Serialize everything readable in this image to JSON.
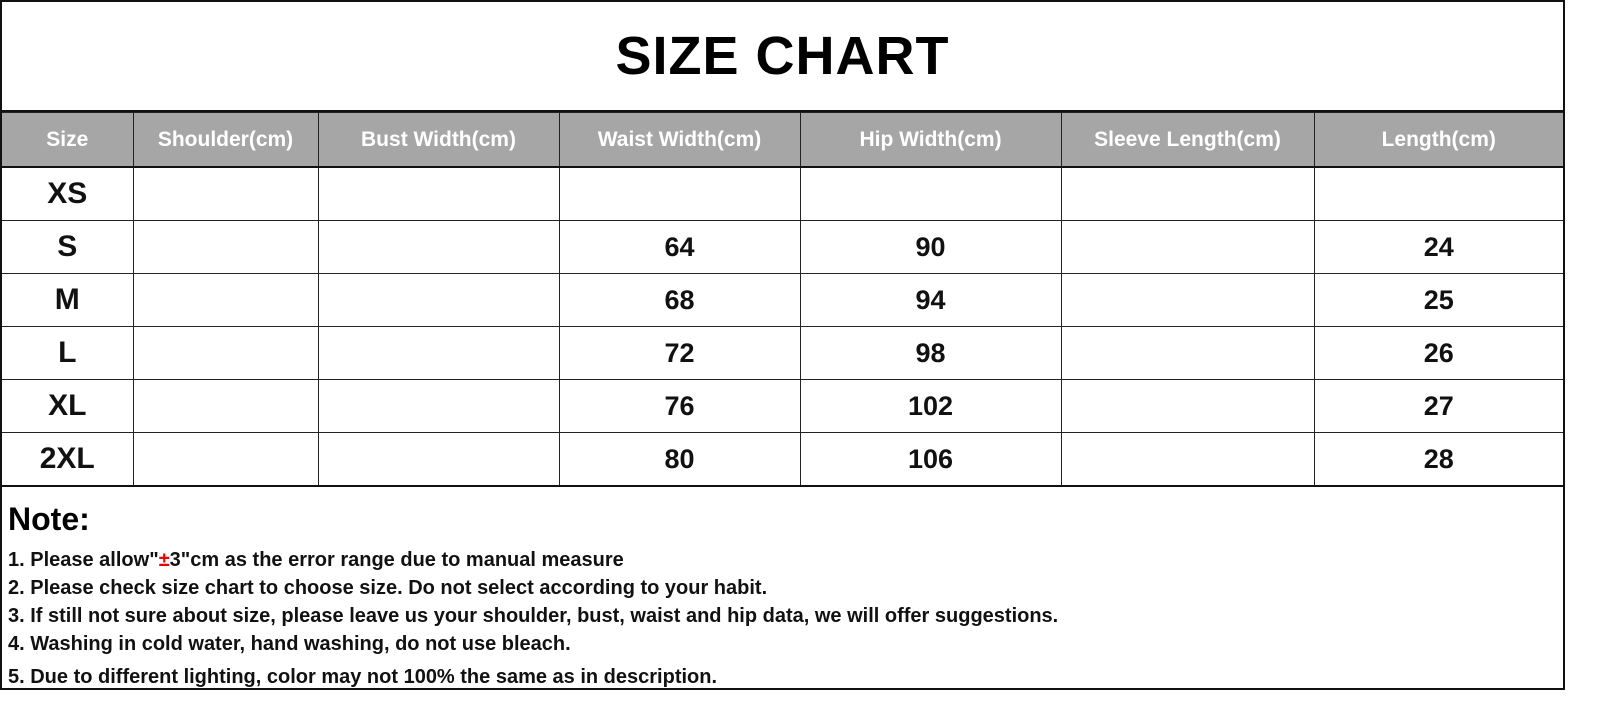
{
  "title": "SIZE CHART",
  "headers": [
    "Size",
    "Shoulder(cm)",
    "Bust Width(cm)",
    "Waist Width(cm)",
    "Hip Width(cm)",
    "Sleeve Length(cm)",
    "Length(cm)"
  ],
  "rows": [
    [
      "XS",
      "",
      "",
      "",
      "",
      "",
      ""
    ],
    [
      "S",
      "",
      "",
      "64",
      "90",
      "",
      "24"
    ],
    [
      "M",
      "",
      "",
      "68",
      "94",
      "",
      "25"
    ],
    [
      "L",
      "",
      "",
      "72",
      "98",
      "",
      "26"
    ],
    [
      "XL",
      "",
      "",
      "76",
      "102",
      "",
      "27"
    ],
    [
      "2XL",
      "",
      "",
      "80",
      "106",
      "",
      "28"
    ]
  ],
  "notes": {
    "heading": "Note:",
    "line1": {
      "before": "1. Please allow\"",
      "highlight": "±",
      "after": "3\"cm as the error range due to manual measure"
    },
    "lines": [
      "2. Please check size chart to choose size. Do not select according to your habit.",
      "3. If still not sure about size, please leave us your shoulder, bust, waist and hip data, we will offer suggestions.",
      "4. Washing in cold water, hand washing, do not use bleach.",
      "5. Due to different lighting, color may not 100% the same as in description."
    ]
  },
  "colors": {
    "header_bg": "#a6a6a6",
    "highlight": "#e00000"
  }
}
